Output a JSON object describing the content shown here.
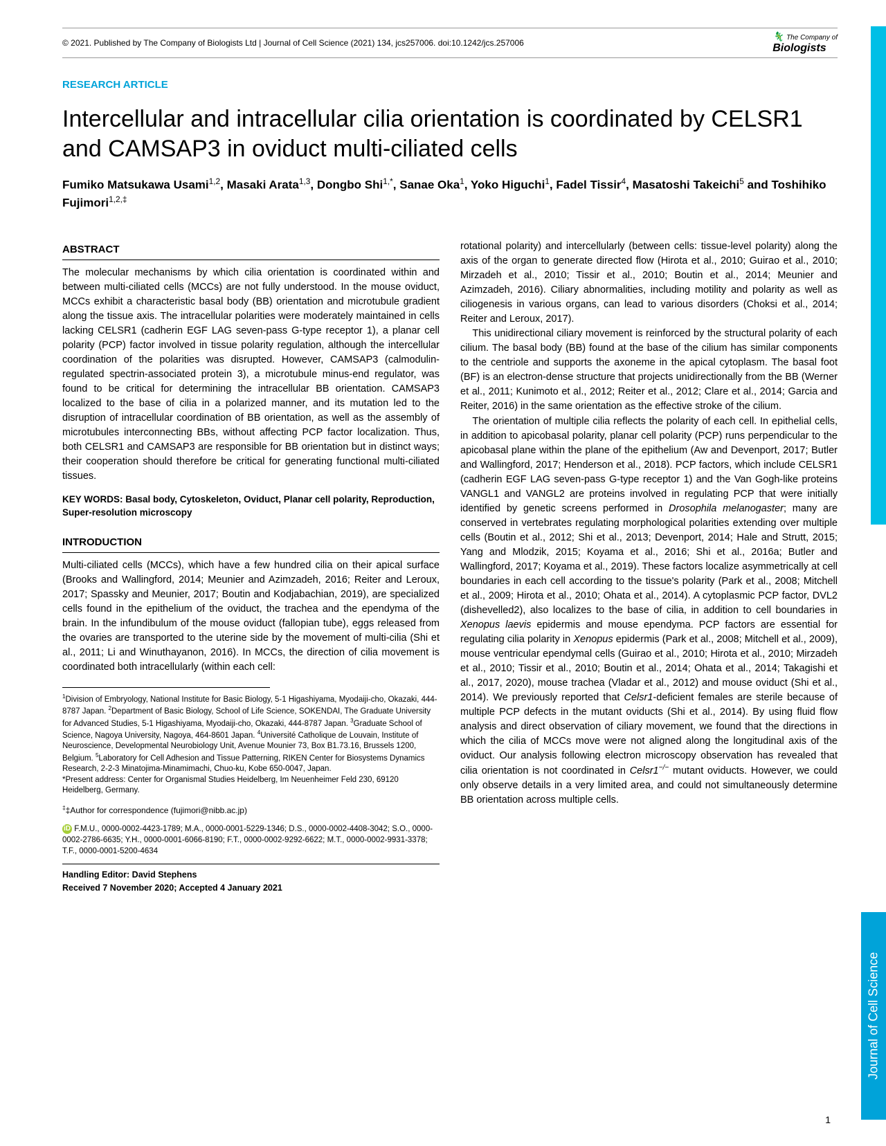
{
  "header": {
    "citation": "© 2021. Published by The Company of Biologists Ltd | Journal of Cell Science (2021) 134, jcs257006. doi:10.1242/jcs.257006",
    "publisher_small": "The Company of",
    "publisher_big": "Biologists"
  },
  "article_type": "RESEARCH ARTICLE",
  "title": "Intercellular and intracellular cilia orientation is coordinated by CELSR1 and CAMSAP3 in oviduct multi-ciliated cells",
  "authors_html": "Fumiko Matsukawa Usami<sup>1,2</sup>, Masaki Arata<sup>1,3</sup>, Dongbo Shi<sup>1,*</sup>, Sanae Oka<sup>1</sup>, Yoko Higuchi<sup>1</sup>, Fadel Tissir<sup>4</sup>, Masatoshi Takeichi<sup>5</sup> and Toshihiko Fujimori<sup>1,2,‡</sup>",
  "abstract": {
    "heading": "ABSTRACT",
    "text": "The molecular mechanisms by which cilia orientation is coordinated within and between multi-ciliated cells (MCCs) are not fully understood. In the mouse oviduct, MCCs exhibit a characteristic basal body (BB) orientation and microtubule gradient along the tissue axis. The intracellular polarities were moderately maintained in cells lacking CELSR1 (cadherin EGF LAG seven-pass G-type receptor 1), a planar cell polarity (PCP) factor involved in tissue polarity regulation, although the intercellular coordination of the polarities was disrupted. However, CAMSAP3 (calmodulin-regulated spectrin-associated protein 3), a microtubule minus-end regulator, was found to be critical for determining the intracellular BB orientation. CAMSAP3 localized to the base of cilia in a polarized manner, and its mutation led to the disruption of intracellular coordination of BB orientation, as well as the assembly of microtubules interconnecting BBs, without affecting PCP factor localization. Thus, both CELSR1 and CAMSAP3 are responsible for BB orientation but in distinct ways; their cooperation should therefore be critical for generating functional multi-ciliated tissues."
  },
  "keywords": "KEY WORDS: Basal body, Cytoskeleton, Oviduct, Planar cell polarity, Reproduction, Super-resolution microscopy",
  "introduction": {
    "heading": "INTRODUCTION",
    "p1": "Multi-ciliated cells (MCCs), which have a few hundred cilia on their apical surface (Brooks and Wallingford, 2014; Meunier and Azimzadeh, 2016; Reiter and Leroux, 2017; Spassky and Meunier, 2017; Boutin and Kodjabachian, 2019), are specialized cells found in the epithelium of the oviduct, the trachea and the ependyma of the brain. In the infundibulum of the mouse oviduct (fallopian tube), eggs released from the ovaries are transported to the uterine side by the movement of multi-cilia (Shi et al., 2011; Li and Winuthayanon, 2016). In MCCs, the direction of cilia movement is coordinated both intracellularly (within each cell:"
  },
  "right_col": {
    "p1": "rotational polarity) and intercellularly (between cells: tissue-level polarity) along the axis of the organ to generate directed flow (Hirota et al., 2010; Guirao et al., 2010; Mirzadeh et al., 2010; Tissir et al., 2010; Boutin et al., 2014; Meunier and Azimzadeh, 2016). Ciliary abnormalities, including motility and polarity as well as ciliogenesis in various organs, can lead to various disorders (Choksi et al., 2014; Reiter and Leroux, 2017).",
    "p2": "This unidirectional ciliary movement is reinforced by the structural polarity of each cilium. The basal body (BB) found at the base of the cilium has similar components to the centriole and supports the axoneme in the apical cytoplasm. The basal foot (BF) is an electron-dense structure that projects unidirectionally from the BB (Werner et al., 2011; Kunimoto et al., 2012; Reiter et al., 2012; Clare et al., 2014; Garcia and Reiter, 2016) in the same orientation as the effective stroke of the cilium.",
    "p3_html": "The orientation of multiple cilia reflects the polarity of each cell. In epithelial cells, in addition to apicobasal polarity, planar cell polarity (PCP) runs perpendicular to the apicobasal plane within the plane of the epithelium (Aw and Devenport, 2017; Butler and Wallingford, 2017; Henderson et al., 2018). PCP factors, which include CELSR1 (cadherin EGF LAG seven-pass G-type receptor 1) and the Van Gogh-like proteins VANGL1 and VANGL2 are proteins involved in regulating PCP that were initially identified by genetic screens performed in <em>Drosophila melanogaster</em>; many are conserved in vertebrates regulating morphological polarities extending over multiple cells (Boutin et al., 2012; Shi et al., 2013; Devenport, 2014; Hale and Strutt, 2015; Yang and Mlodzik, 2015; Koyama et al., 2016; Shi et al., 2016a; Butler and Wallingford, 2017; Koyama et al., 2019). These factors localize asymmetrically at cell boundaries in each cell according to the tissue's polarity (Park et al., 2008; Mitchell et al., 2009; Hirota et al., 2010; Ohata et al., 2014). A cytoplasmic PCP factor, DVL2 (dishevelled2), also localizes to the base of cilia, in addition to cell boundaries in <em>Xenopus laevis</em> epidermis and mouse ependyma. PCP factors are essential for regulating cilia polarity in <em>Xenopus</em> epidermis (Park et al., 2008; Mitchell et al., 2009), mouse ventricular ependymal cells (Guirao et al., 2010; Hirota et al., 2010; Mirzadeh et al., 2010; Tissir et al., 2010; Boutin et al., 2014; Ohata et al., 2014; Takagishi et al., 2017, 2020), mouse trachea (Vladar et al., 2012) and mouse oviduct (Shi et al., 2014). We previously reported that <em>Celsr1</em>-deficient females are sterile because of multiple PCP defects in the mutant oviducts (Shi et al., 2014). By using fluid flow analysis and direct observation of ciliary movement, we found that the directions in which the cilia of MCCs move were not aligned along the longitudinal axis of the oviduct. Our analysis following electron microscopy observation has revealed that cilia orientation is not coordinated in <em>Celsr1<sup>−/−</sup></em> mutant oviducts. However, we could only observe details in a very limited area, and could not simultaneously determine BB orientation across multiple cells."
  },
  "affiliations_html": "<sup>1</sup>Division of Embryology, National Institute for Basic Biology, 5-1 Higashiyama, Myodaiji-cho, Okazaki, 444-8787 Japan. <sup>2</sup>Department of Basic Biology, School of Life Science, SOKENDAI, The Graduate University for Advanced Studies, 5-1 Higashiyama, Myodaiji-cho, Okazaki, 444-8787 Japan. <sup>3</sup>Graduate School of Science, Nagoya University, Nagoya, 464-8601 Japan. <sup>4</sup>Université Catholique de Louvain, Institute of Neuroscience, Developmental Neurobiology Unit, Avenue Mounier 73, Box B1.73.16, Brussels 1200, Belgium. <sup>5</sup>Laboratory for Cell Adhesion and Tissue Patterning, RIKEN Center for Biosystems Dynamics Research, 2-2-3 Minatojima-Minamimachi, Chuo-ku, Kobe 650-0047, Japan.<br>*Present address: Center for Organismal Studies Heidelberg, Im Neuenheimer Feld 230, 69120 Heidelberg, Germany.",
  "correspondence": "‡Author for correspondence (fujimori@nibb.ac.jp)",
  "orcid": "F.M.U., 0000-0002-4423-1789; M.A., 0000-0001-5229-1346; D.S., 0000-0002-4408-3042; S.O., 0000-0002-2786-6635; Y.H., 0000-0001-6066-8190; F.T., 0000-0002-9292-6622; M.T., 0000-0002-9931-3378; T.F., 0000-0001-5200-4634",
  "handling": {
    "editor": "Handling Editor: David Stephens",
    "dates": "Received 7 November 2020; Accepted 4 January 2021"
  },
  "side_journal": "Journal of Cell Science",
  "page_number": "1"
}
